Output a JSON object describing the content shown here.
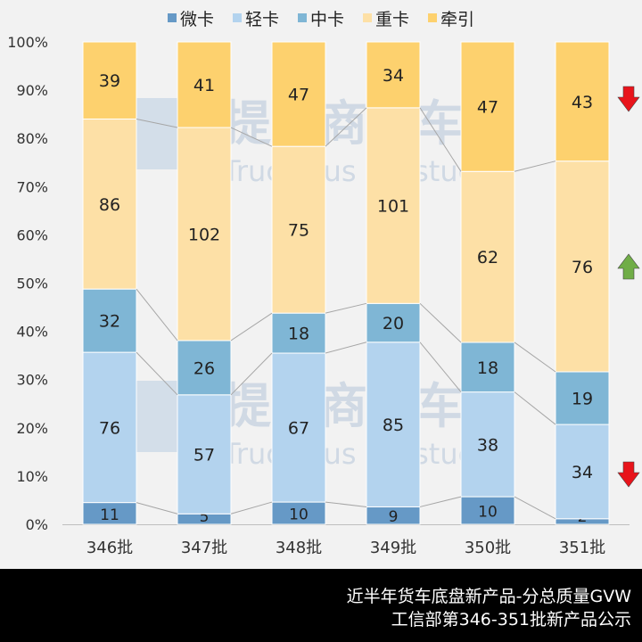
{
  "chart_data": {
    "type": "bar",
    "stacked": "percent",
    "categories": [
      "346批",
      "347批",
      "348批",
      "349批",
      "350批",
      "351批"
    ],
    "series": [
      {
        "name": "微卡",
        "color": "#6699c6",
        "values": [
          11,
          5,
          10,
          9,
          10,
          2
        ]
      },
      {
        "name": "轻卡",
        "color": "#b3d3ee",
        "values": [
          76,
          57,
          67,
          85,
          38,
          34
        ]
      },
      {
        "name": "中卡",
        "color": "#7fb6d5",
        "values": [
          32,
          26,
          18,
          20,
          18,
          19
        ]
      },
      {
        "name": "重卡",
        "color": "#fde0a6",
        "values": [
          86,
          102,
          75,
          101,
          62,
          76
        ]
      },
      {
        "name": "牵引",
        "color": "#fdd16e",
        "values": [
          39,
          41,
          47,
          34,
          47,
          43
        ]
      }
    ],
    "ylim": [
      0,
      100
    ],
    "yticks": [
      "0%",
      "10%",
      "20%",
      "30%",
      "40%",
      "50%",
      "60%",
      "70%",
      "80%",
      "90%",
      "100%"
    ],
    "legend": "top",
    "grid": false,
    "series_lines": true,
    "trend_arrows": [
      {
        "series": "牵引",
        "direction": "down",
        "color": "#e8141b"
      },
      {
        "series": "重卡",
        "direction": "up",
        "color": "#70ad47"
      },
      {
        "series": "轻卡",
        "direction": "down",
        "color": "#e8141b"
      }
    ]
  },
  "watermark": {
    "cn": "提加商用车",
    "en": "TruckPlus CV studio"
  },
  "footer": {
    "line1": "近半年货车底盘新产品-分总质量GVW",
    "line2": "工信部第346-351批新产品公示"
  }
}
